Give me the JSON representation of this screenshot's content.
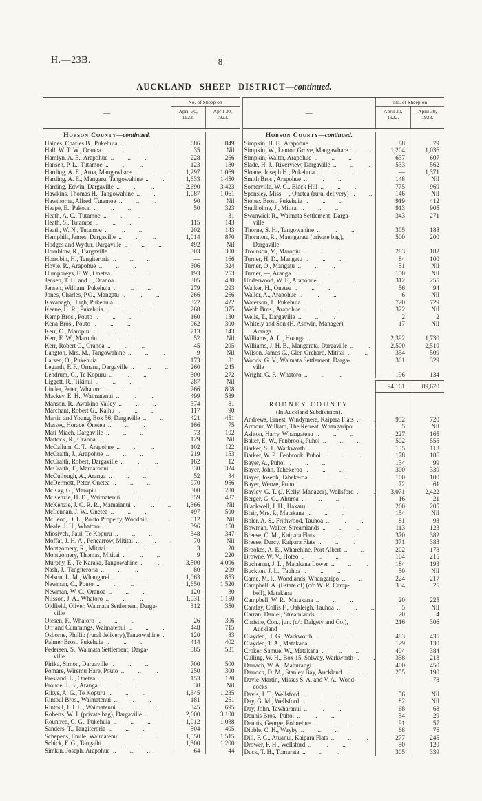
{
  "page": {
    "doc_ref": "H.—23B.",
    "page_number": "8",
    "title_caps": "AUCKLAND SHEEP DISTRICT",
    "title_continued": "—continued."
  },
  "table_header": {
    "name_col": "—",
    "group": "No. of Sheep on",
    "col1": "April 30, 1922.",
    "col2": "April 30, 1923."
  },
  "table": {
    "left": {
      "sections": [
        {
          "heading": {
            "sc": "Hobson County",
            "it": "—continued."
          },
          "rows": [
            [
              "Haines, Charles B., Pukehuia",
              "686",
              "849"
            ],
            [
              "Hall, W. T. W., Oranoa",
              "35",
              "Nil"
            ],
            [
              "Hamlyn, A. E., Arapohue",
              "228",
              "266"
            ],
            [
              "Hansen, P. L., Tutamoe",
              "123",
              "180"
            ],
            [
              "Harding, A. E., Aroa, Mangawhare",
              "1,297",
              "1,069"
            ],
            [
              "Harding, A. E., Mangaru, Tangowahine",
              "1,633",
              "1,450"
            ],
            [
              "Harding, Edwin, Dargaville",
              "2,690",
              "3,423"
            ],
            [
              "Hawkins, Thomas H., Tangowahine",
              "1,087",
              "1,061"
            ],
            [
              "Hawthorne, Alfred, Tutamoe",
              "90",
              "Nil"
            ],
            [
              "Heape, E., Pakotai",
              "50",
              "323"
            ],
            [
              "Heath, A. C., Tutamoe",
              "—",
              "31"
            ],
            [
              "Heath, S., Tutamoe",
              "115",
              "143"
            ],
            [
              "Heath, W. N., Tutamoe",
              "202",
              "143"
            ],
            [
              "Hemphill, James, Dargaville",
              "1,014",
              "870"
            ],
            [
              "Hodges and Wydur, Dargaville",
              "492",
              "Nil"
            ],
            [
              "Hornblow, R., Dargaville",
              "303",
              "300"
            ],
            [
              "Horrobin, H., Tangiteroria",
              "—",
              "166"
            ],
            [
              "Hoyle, R., Arapohue",
              "306",
              "324"
            ],
            [
              "Humphreys, F. W., Onetea",
              "193",
              "253"
            ],
            [
              "Jensen, T. H. and I., Oranoa",
              "305",
              "430"
            ],
            [
              "Jensen, William, Pukehuia",
              "279",
              "293"
            ],
            [
              "Jones, Charles, P.O., Mangatu",
              "266",
              "266"
            ],
            [
              "Kavanagh, Hugh, Pukehuia",
              "322",
              "422"
            ],
            [
              "Keene, H. R., Pukehuia",
              "268",
              "375"
            ],
            [
              "Kemp Bros., Pouto",
              "160",
              "130"
            ],
            [
              "Kena Bros., Pouto",
              "962",
              "300"
            ],
            [
              "Kerr, C., Maropiu",
              "213",
              "143"
            ],
            [
              "Kerr, E. W., Maropiu",
              "52",
              "Nil"
            ],
            [
              "Kerr, Robert C., Oranoa",
              "45",
              "295"
            ],
            [
              "Langton, Mrs. M., Tangowahine",
              "9",
              "Nil"
            ],
            [
              "Larsen, O., Pukehuia",
              "173",
              "81"
            ],
            [
              "Legarth, F. F., Omana, Dargaville",
              "260",
              "245"
            ],
            [
              "Lendrum, G., Te Kopuru",
              "300",
              "272"
            ],
            [
              "Liggett, R., Tikinui",
              "287",
              "Nil"
            ],
            [
              "Linder, Peter, Whatoro",
              "266",
              "808"
            ],
            [
              "Mackey, E. H., Waimatenui",
              "499",
              "589"
            ],
            [
              "Manson, R., Awakino Valley",
              "374",
              "81"
            ],
            [
              "Marchant, Robert G., Kaihu",
              "117",
              "90"
            ],
            [
              "Martin and Young, Box 56, Dargaville",
              "421",
              "451"
            ],
            [
              "Massey, Horace, Onetea",
              "166",
              "75"
            ],
            [
              "Mati Miach, Dargaville",
              "73",
              "102"
            ],
            [
              "Mattock, R., Oranoa",
              "129",
              "Nil"
            ],
            [
              "McCallum, C. T., Arapohue",
              "102",
              "122"
            ],
            [
              "McCraith, J., Arapohue",
              "219",
              "153"
            ],
            [
              "McCraith, Robert, Dargaville",
              "162",
              "12"
            ],
            [
              "McCraith, T., Mamaronui",
              "330",
              "324"
            ],
            [
              "McCullough, A., Aranga",
              "52",
              "34"
            ],
            [
              "McDermott, Peter, Onetea",
              "970",
              "956"
            ],
            [
              "McKay, G., Maropiu",
              "300",
              "280"
            ],
            [
              "McKenzie, H. D., Waimatenui",
              "359",
              "487"
            ],
            [
              "McKenzie, J. C. R. R., Mamaianui",
              "1,366",
              "Nil"
            ],
            [
              "McLennan, J. W., Onetea",
              "497",
              "500"
            ],
            [
              "McLeod, D. L., Pouto Property, Woodhill",
              "512",
              "Nil"
            ],
            [
              "Meale, J. H., Whatoro",
              "396",
              "150"
            ],
            [
              "Miosivch, Paul, Te Kopuru",
              "348",
              "347"
            ],
            [
              "Moffat, J. H. A., Pencarrow, Mititai",
              "70",
              "Nil"
            ],
            [
              "Montgomery, R., Mititai",
              "3",
              "20"
            ],
            [
              "Montgomery, Thomas, Mititai",
              "9",
              "220"
            ],
            [
              "Murphy, E., Te Karaka, Tangowahine",
              "3,500",
              "4,096"
            ],
            [
              "Nash, J., Tangiteroria",
              "80",
              "209"
            ],
            [
              "Nelson, L. M., Whangarei",
              "1,063",
              "853"
            ],
            [
              "Newman, C., Pouto",
              "1,650",
              "1,520"
            ],
            [
              "Newman, W. C., Oranoa",
              "120",
              "30"
            ],
            [
              "Nilsson, J. A., Whatoro",
              "1,031",
              "1,150"
            ],
            [
              "Oldfield, Oliver, Waimata Settlement, Darga-\nville",
              "312",
              "350"
            ],
            [
              "Olesen, F., Whatoro",
              "26",
              "306"
            ],
            [
              "Orr and Cummings, Waimatenui",
              "448",
              "715"
            ],
            [
              "Osborne, Phillip (rural delivery),Tangowahine",
              "120",
              "83"
            ],
            [
              "Palmer Bros., Pukehuia",
              "414",
              "402"
            ],
            [
              "Pedersen, S., Waimata Settlement, Darga-\nville",
              "585",
              "531"
            ],
            [
              "Pirika, Simon, Dargaville",
              "700",
              "500"
            ],
            [
              "Pomare, Wiremu Hare, Pouto",
              "250",
              "300"
            ],
            [
              "Presland, L., Onetea",
              "153",
              "120"
            ],
            [
              "Proude, J. B., Aranga",
              "30",
              "Nil"
            ],
            [
              "Rikys, A. G., Te Kopuru",
              "1,345",
              "1,235"
            ],
            [
              "Rintoul Bros., Waimatenui",
              "181",
              "261"
            ],
            [
              "Rintoul, J. J. L., Waimatenui",
              "345",
              "695"
            ],
            [
              "Roberts, W. J. (private bag), Dargaville",
              "2,600",
              "3,100"
            ],
            [
              "Rountree, G. G., Pukehuia",
              "1,012",
              "1,088"
            ],
            [
              "Sanders, T., Tangiteroria",
              "504",
              "405"
            ],
            [
              "Schepens, Emile, Waimatenui",
              "1,550",
              "1,515"
            ],
            [
              "Schick, F. G., Tangaihi",
              "1,300",
              "1,200"
            ],
            [
              "Simkin, Joseph, Arapohue",
              "64",
              "44"
            ]
          ]
        }
      ]
    },
    "right": {
      "sections": [
        {
          "heading": {
            "sc": "Hobson County",
            "it": "—continued."
          },
          "rows": [
            [
              "Simpkin, H. E., Arapohue",
              "88",
              "79"
            ],
            [
              "Simpkin, W., Lenton Grove, Mangawhare",
              "1,204",
              "1,036"
            ],
            [
              "Simpkin, Walter, Arapohue",
              "637",
              "607"
            ],
            [
              "Slade, H. J., Riverview, Dargaville",
              "533",
              "562"
            ],
            [
              "Sloane, Joseph H., Pukehuia",
              "—",
              "1,371"
            ],
            [
              "Smith Bros., Arapohue",
              "148",
              "Nil"
            ],
            [
              "Somerville, W. G., Black Hill",
              "775",
              "969"
            ],
            [
              "Spensley, Miss —, Onetea (rural delivery)",
              "146",
              "Nil"
            ],
            [
              "Stonex Bros., Pukehuia",
              "919",
              "412"
            ],
            [
              "Studholme, J., Mititai",
              "913",
              "905"
            ],
            [
              "Swanwick R., Waimata Settlement, Darga-\nville",
              "343",
              "271"
            ],
            [
              "Thorne, S. H., Tangowahine",
              "305",
              "188"
            ],
            [
              "Thornton, R., Maungarata (private bag),\nDargaville",
              "500",
              "200"
            ],
            [
              "Trounson, V., Maropiu",
              "283",
              "182"
            ],
            [
              "Turner, H. D., Mangatu",
              "84",
              "100"
            ],
            [
              "Turner, O., Mangatu",
              "51",
              "Nil"
            ],
            [
              "Turner, —, Aranga",
              "150",
              "Nil"
            ],
            [
              "Underwood, W. F., Arapohue",
              "312",
              "255"
            ],
            [
              "Walker, H., Onetea",
              "56",
              "94"
            ],
            [
              "Waller, A., Arapohue",
              "6",
              "Nil"
            ],
            [
              "Waterson, J., Pukehuia",
              "720",
              "729"
            ],
            [
              "Webb Bros., Arapohue",
              "322",
              "Nil"
            ],
            [
              "Wells, T., Dargaville",
              "2",
              "2"
            ],
            [
              "Whitely and Son (H. Ashwin, Manager),\nAranga",
              "17",
              "Nil"
            ],
            [
              "Williams, A. L., Hoanga",
              "2,392",
              "1,730"
            ],
            [
              "Williams, J. H. B., Mangarata, Dargaville",
              "2,500",
              "2,519"
            ],
            [
              "Wilson, James G., Glen Orchard, Mititai",
              "354",
              "509"
            ],
            [
              "Woods, G. V., Waimata Settlement, Darga-\nville",
              "301",
              "329"
            ],
            [
              "Wright, G. F., Whatoro",
              "196",
              "134"
            ]
          ],
          "total": [
            "94,161",
            "89,670"
          ]
        },
        {
          "gap_before": 12,
          "heading": {
            "caps": "RODNEY COUNTY"
          },
          "subheading": "(In Auckland Subdivision).",
          "rows": [
            [
              "Andrews, Ernest, Windymere, Kaipara Flats",
              "952",
              "720"
            ],
            [
              "Armour, William, The Retreat, Whangaripo",
              "5",
              "Nil"
            ],
            [
              "Ashton, Harry, Whangateau",
              "227",
              "165"
            ],
            [
              "Baker, E. W., Fenbrook, Puhoi",
              "502",
              "555"
            ],
            [
              "Barker, S. J., Warkworth",
              "135",
              "113"
            ],
            [
              "Barker, W. P., Fenbrook, Puhoi",
              "178",
              "186"
            ],
            [
              "Bayer, A., Puhoi",
              "134",
              "99"
            ],
            [
              "Bayer, John, Tahekeroa",
              "300",
              "339"
            ],
            [
              "Bayer, Joseph, Tahekeroa",
              "100",
              "100"
            ],
            [
              "Bayer, Wenze, Puhoi",
              "72",
              "61"
            ],
            [
              "Bayley, G. T. (J. Kelly, Manager), Wellsford",
              "3,071",
              "2,422"
            ],
            [
              "Berger, G. O., Ahuroa",
              "16",
              "21"
            ],
            [
              "Blackwell, J. H., Hakaru",
              "260",
              "205"
            ],
            [
              "Blair, Mrs. P., Matakana",
              "154",
              "Nil"
            ],
            [
              "Boler, A. S., Frithwood, Tauhoa",
              "81",
              "93"
            ],
            [
              "Bowman, Walter, Streamlands",
              "113",
              "123"
            ],
            [
              "Breese, C. M., Kaipara Flats",
              "370",
              "382"
            ],
            [
              "Breese, Darcy, Kaipara Flats",
              "371",
              "383"
            ],
            [
              "Brookes, A. E., Wharehine, Port Albert",
              "202",
              "178"
            ],
            [
              "Browne, W. V., Hoteo",
              "104",
              "215"
            ],
            [
              "Buchanan, J. L., Matakana Lower",
              "184",
              "193"
            ],
            [
              "Buckton, J. L., Tauhoa",
              "50",
              "Nil"
            ],
            [
              "Came, M. P., Woodlands, Whangaripo",
              "224",
              "217"
            ],
            [
              "Campbell, A. (Estate of) (c/o W. R. Camp-\nbell), Matakana",
              "334",
              "25"
            ],
            [
              "Campbell, W. R., Matakana",
              "20",
              "225"
            ],
            [
              "Cantlay, Collis F., Oakleigh, Tauhoa",
              "5",
              "Nil"
            ],
            [
              "Carran, Daniel, Streamlands",
              "20",
              "4"
            ],
            [
              "Christie, Con., jun. (c/o Dalgety and Co.),\nAuckland",
              "216",
              "306"
            ],
            [
              "Clayden, H. G., Warkworth",
              "483",
              "435"
            ],
            [
              "Clayden, T. A., Matakana",
              "129",
              "130"
            ],
            [
              "Croker, Samuel W., Matakana",
              "404",
              "384"
            ],
            [
              "Culling, W. H., Box 15, Solway, Warkworth",
              "358",
              "213"
            ],
            [
              "Darrach, W. A., Mahurangi",
              "400",
              "450"
            ],
            [
              "Darroch, D. M., Stanley Bay, Auckland",
              "255",
              "190"
            ],
            [
              "Davie-Martin, Misses S. A. and V. A., Wood-\ncocks",
              "—",
              "78"
            ],
            [
              "Davis, J. T., Wellsford",
              "56",
              "Nil"
            ],
            [
              "Day, G. M., Wellsford",
              "82",
              "Nil"
            ],
            [
              "Day, John, Tawharanui",
              "68",
              "68"
            ],
            [
              "Dennis Bros., Puhoi",
              "54",
              "29"
            ],
            [
              "Dennis, George, Pohuehue",
              "91",
              "57"
            ],
            [
              "Dibble, C. H., Wayby",
              "68",
              "76"
            ],
            [
              "Dill, F. G., Atuanui, Kaipara Flats",
              "277",
              "245"
            ],
            [
              "Drower, F. H., Wellsford",
              "50",
              "120"
            ],
            [
              "Duck, T. H., Tomarata",
              "305",
              "339"
            ]
          ]
        }
      ]
    }
  }
}
